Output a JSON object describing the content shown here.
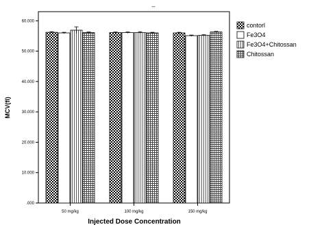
{
  "chart_data": {
    "type": "bar",
    "title": "--",
    "xlabel": "Injected Dose Concentration",
    "ylabel": "MCV(fl)",
    "categories": [
      "50 mg/kg",
      "100 mg/kg",
      "150 mg/kg"
    ],
    "y_ticks": [
      ".000",
      "10.000",
      "20.000",
      "30.000",
      "40.000",
      "50.000",
      "60.000"
    ],
    "ylim": [
      0,
      63
    ],
    "grid": false,
    "legend_position": "right",
    "series": [
      {
        "name": "contorl",
        "values": [
          56.2,
          56.1,
          56.0
        ],
        "errors": [
          0.2,
          0.2,
          0.2
        ],
        "pattern": "checker"
      },
      {
        "name": "Fe3O4",
        "values": [
          56.0,
          56.1,
          55.1
        ],
        "errors": [
          0.2,
          0.2,
          0.2
        ],
        "pattern": "white"
      },
      {
        "name": "Fe3O4+Chitossan",
        "values": [
          56.9,
          56.1,
          55.2
        ],
        "errors": [
          1.1,
          0.3,
          0.2
        ],
        "pattern": "vstripe"
      },
      {
        "name": "Chitossan",
        "values": [
          56.1,
          56.0,
          56.3
        ],
        "errors": [
          0.2,
          0.2,
          0.2
        ],
        "pattern": "grid"
      }
    ]
  }
}
